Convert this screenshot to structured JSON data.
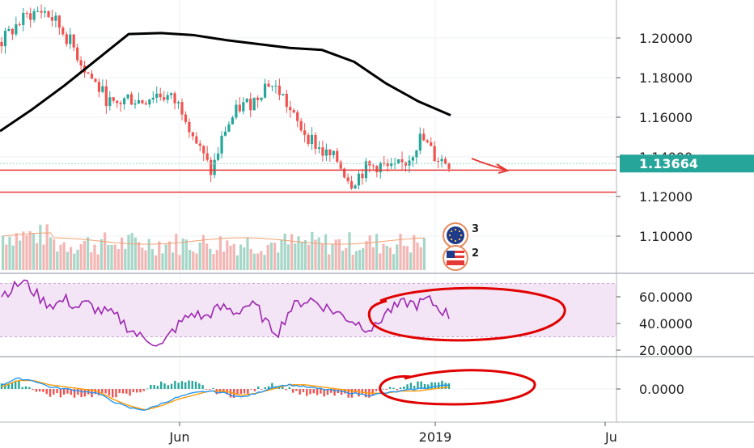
{
  "chart_data": [
    {
      "type": "candlestick",
      "panel": "price",
      "y_ticks": [
        "1.20000",
        "1.18000",
        "1.16000",
        "1.14000",
        "1.12000",
        "1.10000"
      ],
      "y_tick_values": [
        1.2,
        1.18,
        1.16,
        1.14,
        1.12,
        1.1
      ],
      "ylim": [
        1.0825,
        1.2175
      ],
      "last_price": "1.13664",
      "last_price_value": 1.13664,
      "support_levels": [
        1.1333,
        1.1222
      ],
      "moving_average": [
        1.153,
        1.164,
        1.176,
        1.189,
        1.202,
        1.2025,
        1.2015,
        1.199,
        1.197,
        1.195,
        1.194,
        1.188,
        1.177,
        1.168,
        1.161
      ],
      "candles_close_approx": [
        1.198,
        1.206,
        1.212,
        1.214,
        1.207,
        1.197,
        1.184,
        1.174,
        1.165,
        1.17,
        1.168,
        1.172,
        1.17,
        1.164,
        1.146,
        1.132,
        1.154,
        1.165,
        1.168,
        1.178,
        1.172,
        1.158,
        1.15,
        1.142,
        1.138,
        1.127,
        1.134,
        1.136,
        1.133,
        1.138,
        1.15,
        1.14,
        1.137
      ],
      "colors": {
        "up": "#26a69a",
        "down": "#ef5350",
        "ma": "#000000",
        "level": "#e53935",
        "price_label": "#26a69a"
      },
      "flags": [
        {
          "icon": "eu-flag-icon",
          "count": "3"
        },
        {
          "icon": "us-flag-icon",
          "count": "2"
        }
      ]
    },
    {
      "type": "bar",
      "panel": "volume",
      "colors": {
        "up": "#a5d6c8",
        "down": "#f4b6b4",
        "ma": "#f0a070"
      }
    },
    {
      "type": "line",
      "panel": "rsi",
      "y_ticks": [
        "60.0000",
        "40.0000",
        "20.0000"
      ],
      "y_tick_values": [
        60,
        40,
        20
      ],
      "ylim": [
        17,
        80
      ],
      "band": [
        30,
        70
      ],
      "values": [
        62,
        66,
        72,
        64,
        56,
        54,
        58,
        52,
        55,
        50,
        48,
        44,
        36,
        30,
        28,
        22,
        34,
        42,
        48,
        44,
        50,
        52,
        48,
        54,
        52,
        38,
        34,
        50,
        56,
        58,
        54,
        50,
        46,
        42,
        38,
        36,
        48,
        52,
        56,
        54,
        58,
        52,
        46
      ],
      "colors": {
        "line": "#9c27b0",
        "band": "#f3e5f5"
      }
    },
    {
      "type": "line",
      "panel": "macd",
      "y_ticks": [
        "0.0000"
      ],
      "y_tick_values": [
        0
      ],
      "ylim": [
        -0.012,
        0.008
      ],
      "macd": [
        0.002,
        0.005,
        0.004,
        0.001,
        0.0,
        -0.001,
        -0.002,
        -0.006,
        -0.009,
        -0.01,
        -0.007,
        -0.004,
        -0.002,
        -0.001,
        -0.002,
        -0.004,
        -0.002,
        0.001,
        0.002,
        0.001,
        0.0,
        -0.001,
        -0.002,
        -0.003,
        -0.002,
        -0.001,
        0.0,
        0.001,
        0.002
      ],
      "signal": [
        0.001,
        0.004,
        0.004,
        0.002,
        0.001,
        0.0,
        -0.001,
        -0.005,
        -0.008,
        -0.01,
        -0.008,
        -0.005,
        -0.003,
        -0.001,
        -0.001,
        -0.003,
        -0.002,
        0.0,
        0.002,
        0.002,
        0.001,
        0.0,
        -0.001,
        -0.002,
        -0.002,
        -0.001,
        -0.001,
        0.0,
        0.001
      ],
      "colors": {
        "macd": "#2196f3",
        "signal": "#ff9800",
        "hist_up": "#26a69a",
        "hist_down": "#ef5350"
      }
    }
  ],
  "x_axis": {
    "tick_labels": [
      "Jun",
      "2019",
      "Ju"
    ]
  },
  "annotations": {
    "arrow_color": "#e53935",
    "circle_color": "#e00000"
  }
}
